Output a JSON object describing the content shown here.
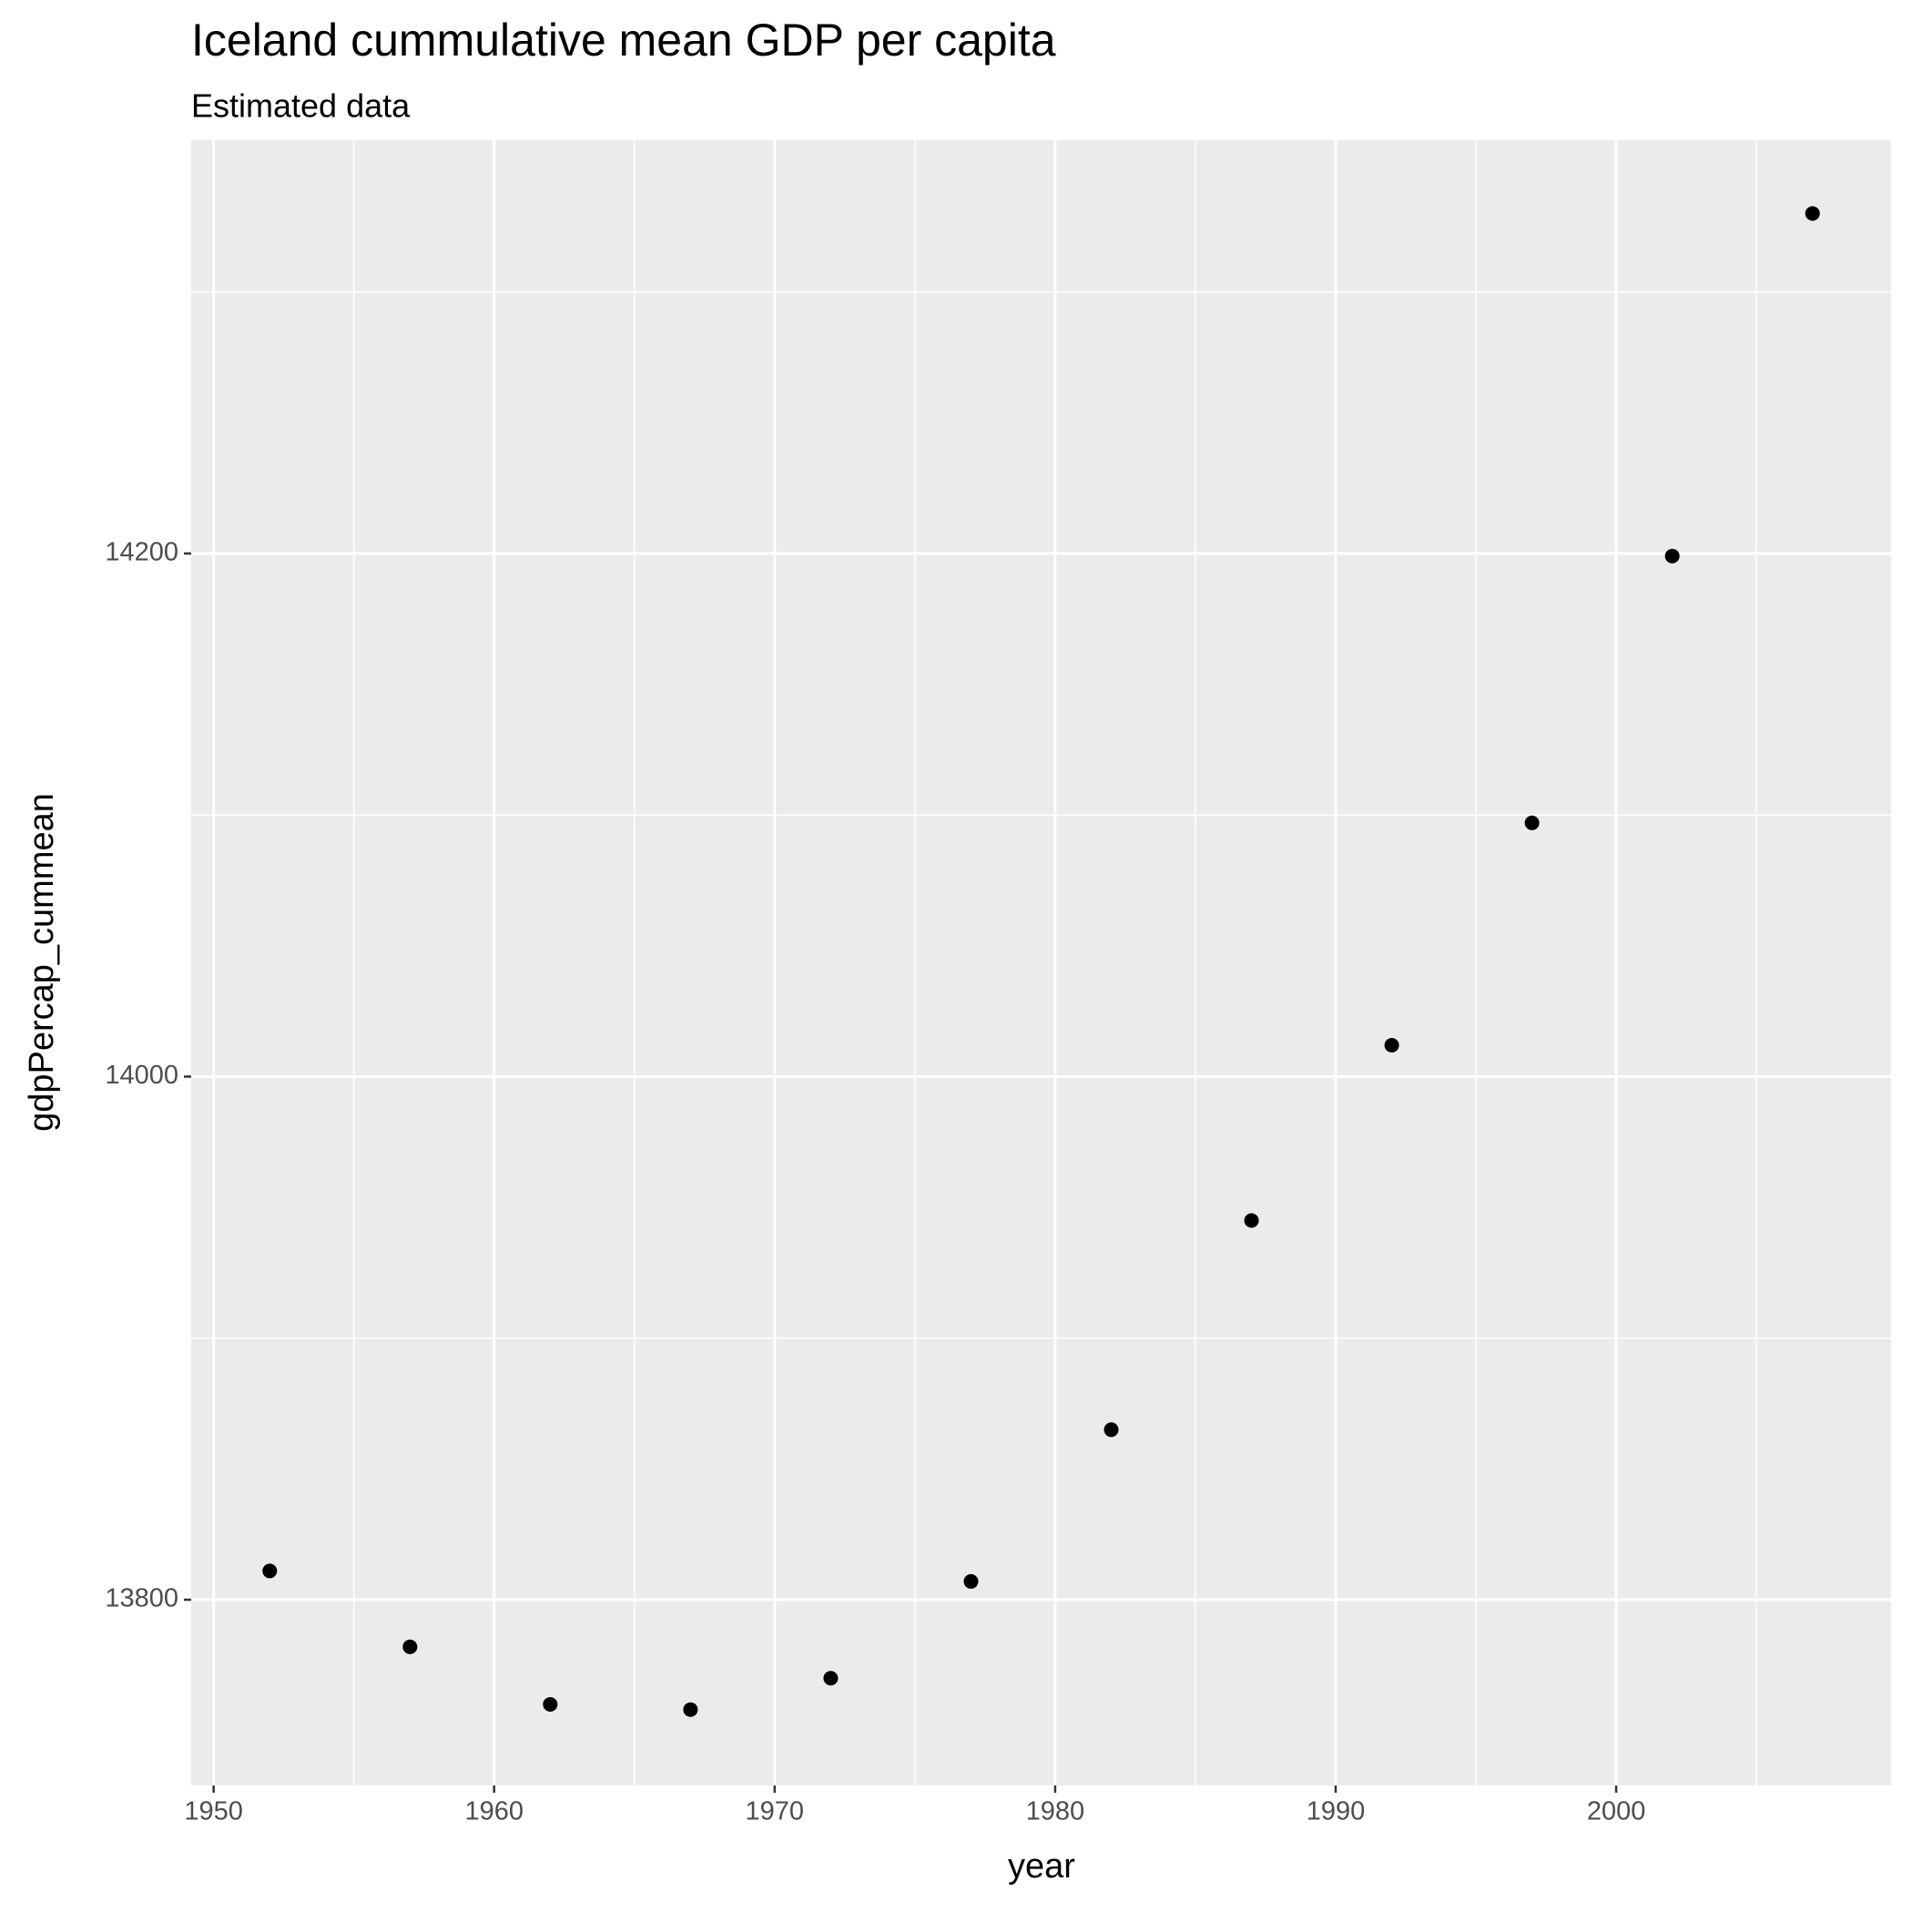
{
  "chart_data": {
    "type": "scatter",
    "title": "Iceland  cummulative mean GDP per capita",
    "subtitle": "Estimated data",
    "x_label": "year",
    "y_label": "gdpPercap_cummean",
    "x": [
      1952,
      1957,
      1962,
      1967,
      1972,
      1977,
      1982,
      1987,
      1992,
      1997,
      2002,
      2007
    ],
    "values": [
      13811,
      13782,
      13760,
      13758,
      13770,
      13807,
      13865,
      13945,
      14012,
      14097,
      14199,
      14330
    ],
    "color": "#000000",
    "xlim": [
      1949.2,
      2009.8
    ],
    "ylim": [
      13729,
      14358
    ],
    "xticks": [
      1950,
      1960,
      1970,
      1980,
      1990,
      2000
    ],
    "yticks": [
      13800,
      14000,
      14200
    ],
    "x_minor_grid": [
      1955,
      1965,
      1975,
      1985,
      1995,
      2005
    ],
    "y_minor_grid": [
      13900,
      14100,
      14300
    ],
    "grid": true,
    "panel_color": "#ebebeb"
  }
}
